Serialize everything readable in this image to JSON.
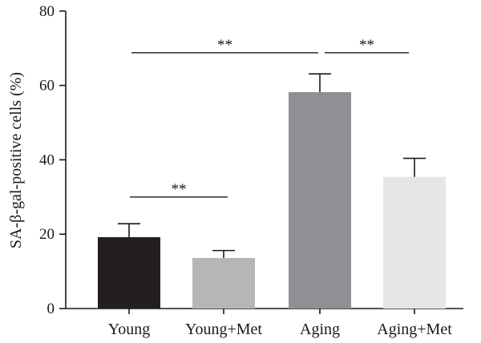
{
  "chart_data": {
    "type": "bar",
    "categories": [
      "Young",
      "Young+Met",
      "Aging",
      "Aging+Met"
    ],
    "values": [
      19.2,
      13.6,
      58.2,
      35.4
    ],
    "errors": [
      3.6,
      2.0,
      4.9,
      5.0
    ],
    "colors": [
      "#231f20",
      "#b6b6b6",
      "#8e9093",
      "#e6e6e7"
    ],
    "title": "",
    "xlabel": "",
    "ylabel": "SA-β-gal-positive cells (%)",
    "ylim": [
      0,
      80
    ],
    "yticks": [
      0,
      20,
      40,
      60,
      80
    ],
    "grid": false,
    "significance": [
      {
        "from": "Young",
        "to": "Young+Met",
        "label": "**",
        "y": 30
      },
      {
        "from": "Young",
        "to": "Aging",
        "label": "**",
        "y": 68.8
      },
      {
        "from": "Aging",
        "to": "Aging+Met",
        "label": "**",
        "y": 68.8
      }
    ]
  }
}
